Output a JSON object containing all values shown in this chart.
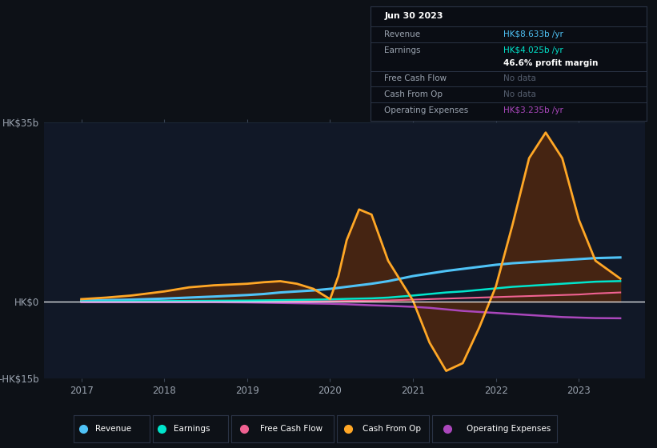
{
  "background_color": "#0d1117",
  "chart_bg": "#111827",
  "grid_color": "#1e2a3a",
  "text_color": "#9aa3af",
  "ylim": [
    -15,
    35
  ],
  "ytick_vals": [
    -15,
    0,
    35
  ],
  "ytick_labels": [
    "-HK$15b",
    "HK$0",
    "HK$35b"
  ],
  "xlim": [
    2016.55,
    2023.8
  ],
  "xtick_vals": [
    2017,
    2018,
    2019,
    2020,
    2021,
    2022,
    2023
  ],
  "x_years": [
    2017.0,
    2017.3,
    2017.6,
    2018.0,
    2018.3,
    2018.6,
    2019.0,
    2019.2,
    2019.4,
    2019.6,
    2019.8,
    2020.0,
    2020.1,
    2020.2,
    2020.35,
    2020.5,
    2020.7,
    2021.0,
    2021.2,
    2021.4,
    2021.6,
    2021.8,
    2022.0,
    2022.2,
    2022.4,
    2022.6,
    2022.8,
    2023.0,
    2023.2,
    2023.5
  ],
  "revenue": [
    0.2,
    0.3,
    0.4,
    0.6,
    0.8,
    1.0,
    1.3,
    1.5,
    1.8,
    2.0,
    2.2,
    2.5,
    2.7,
    2.9,
    3.2,
    3.5,
    4.0,
    5.0,
    5.5,
    6.0,
    6.4,
    6.8,
    7.2,
    7.5,
    7.7,
    7.9,
    8.1,
    8.3,
    8.5,
    8.63
  ],
  "earnings": [
    0.05,
    0.07,
    0.09,
    0.12,
    0.15,
    0.18,
    0.22,
    0.26,
    0.3,
    0.35,
    0.4,
    0.45,
    0.5,
    0.55,
    0.6,
    0.65,
    0.8,
    1.2,
    1.5,
    1.8,
    2.0,
    2.3,
    2.6,
    2.9,
    3.1,
    3.3,
    3.5,
    3.7,
    3.9,
    4.02
  ],
  "free_cash_flow": [
    0.01,
    0.01,
    0.02,
    0.03,
    0.04,
    0.05,
    0.06,
    0.07,
    0.08,
    0.09,
    0.1,
    0.12,
    0.13,
    0.15,
    0.17,
    0.2,
    0.25,
    0.4,
    0.5,
    0.6,
    0.7,
    0.8,
    0.9,
    1.0,
    1.1,
    1.2,
    1.3,
    1.4,
    1.6,
    1.8
  ],
  "cash_from_op": [
    0.5,
    0.8,
    1.2,
    2.0,
    2.8,
    3.2,
    3.5,
    3.8,
    4.0,
    3.5,
    2.5,
    0.5,
    5.0,
    12.0,
    18.0,
    17.0,
    8.0,
    0.2,
    -8.0,
    -13.5,
    -12.0,
    -5.0,
    3.0,
    15.0,
    28.0,
    33.0,
    28.0,
    16.0,
    8.0,
    4.5
  ],
  "operating_expenses": [
    -0.1,
    -0.1,
    -0.1,
    -0.1,
    -0.1,
    -0.1,
    -0.15,
    -0.2,
    -0.25,
    -0.3,
    -0.35,
    -0.4,
    -0.45,
    -0.5,
    -0.6,
    -0.7,
    -0.8,
    -1.0,
    -1.2,
    -1.5,
    -1.8,
    -2.0,
    -2.2,
    -2.4,
    -2.6,
    -2.8,
    -3.0,
    -3.1,
    -3.2,
    -3.235
  ],
  "revenue_color": "#4fc3f7",
  "earnings_color": "#00e5cc",
  "free_cash_flow_color": "#f06292",
  "cash_from_op_color": "#ffa726",
  "cash_from_op_fill": "#5c2a0a",
  "operating_expenses_color": "#ab47bc",
  "legend_items": [
    "Revenue",
    "Earnings",
    "Free Cash Flow",
    "Cash From Op",
    "Operating Expenses"
  ],
  "legend_colors": [
    "#4fc3f7",
    "#00e5cc",
    "#f06292",
    "#ffa726",
    "#ab47bc"
  ],
  "info_box": {
    "date": "Jun 30 2023",
    "revenue_label": "Revenue",
    "revenue_value": "HK$8.633b /yr",
    "revenue_color": "#4fc3f7",
    "earnings_label": "Earnings",
    "earnings_value": "HK$4.025b /yr",
    "earnings_color": "#00e5cc",
    "margin": "46.6% profit margin",
    "fcf_label": "Free Cash Flow",
    "fcf_value": "No data",
    "cfo_label": "Cash From Op",
    "cfo_value": "No data",
    "opex_label": "Operating Expenses",
    "opex_value": "HK$3.235b /yr",
    "opex_color": "#ab47bc",
    "nodata_color": "#555e6e"
  }
}
